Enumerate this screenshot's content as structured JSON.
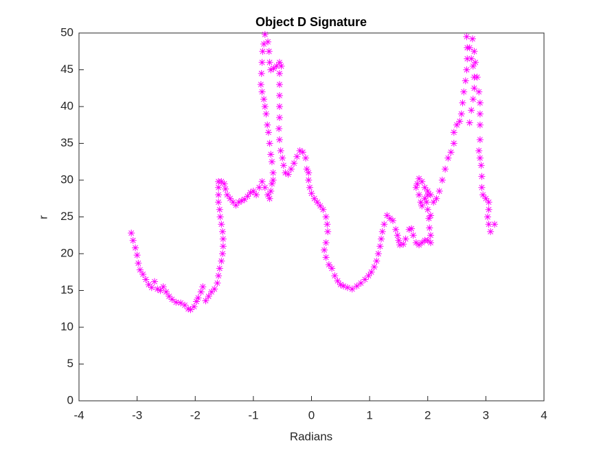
{
  "chart_data": {
    "type": "scatter",
    "title": "Object D Signature",
    "x_label": "Radians",
    "y_label": "r",
    "color": "#ff00ff",
    "marker": "asterisk",
    "xlim": [
      -4,
      4
    ],
    "xticks": [
      -4,
      -3,
      -2,
      -1,
      0,
      1,
      2,
      3,
      4
    ],
    "ylim": [
      0,
      50
    ],
    "yticks": [
      0,
      5,
      10,
      15,
      20,
      25,
      30,
      35,
      40,
      45,
      50
    ],
    "x": [
      -3.1,
      -3.07,
      -3.03,
      -3.0,
      -2.98,
      -2.95,
      -2.9,
      -2.85,
      -2.8,
      -2.75,
      -2.7,
      -2.65,
      -2.6,
      -2.55,
      -2.5,
      -2.45,
      -2.4,
      -2.33,
      -2.25,
      -2.18,
      -2.12,
      -2.08,
      -2.02,
      -1.98,
      -1.95,
      -1.9,
      -1.87,
      -1.82,
      -1.77,
      -1.72,
      -1.67,
      -1.62,
      -1.6,
      -1.58,
      -1.55,
      -1.53,
      -1.52,
      -1.52,
      -1.53,
      -1.55,
      -1.57,
      -1.58,
      -1.6,
      -1.6,
      -1.6,
      -1.6,
      -1.55,
      -1.5,
      -1.48,
      -1.45,
      -1.4,
      -1.35,
      -1.3,
      -1.25,
      -1.2,
      -1.15,
      -1.1,
      -1.05,
      -1.0,
      -0.95,
      -0.9,
      -0.85,
      -0.8,
      -0.75,
      -0.72,
      -0.7,
      -0.68,
      -0.87,
      -0.86,
      -0.85,
      -0.84,
      -0.82,
      -0.8,
      -0.85,
      -0.82,
      -0.8,
      -0.78,
      -0.76,
      -0.74,
      -0.72,
      -0.7,
      -0.68,
      -0.66,
      -0.66,
      -0.75,
      -0.73,
      -0.72,
      -0.7,
      -0.65,
      -0.6,
      -0.55,
      -0.52,
      -0.55,
      -0.55,
      -0.55,
      -0.55,
      -0.55,
      -0.56,
      -0.55,
      -0.53,
      -0.5,
      -0.48,
      -0.45,
      -0.4,
      -0.35,
      -0.3,
      -0.25,
      -0.2,
      -0.15,
      -0.1,
      -0.08,
      -0.05,
      -0.05,
      -0.03,
      0.0,
      0.05,
      0.1,
      0.15,
      0.2,
      0.25,
      0.27,
      0.28,
      0.25,
      0.22,
      0.25,
      0.3,
      0.35,
      0.4,
      0.45,
      0.5,
      0.55,
      0.62,
      0.7,
      0.78,
      0.85,
      0.92,
      0.98,
      1.03,
      1.08,
      1.12,
      1.15,
      1.18,
      1.2,
      1.22,
      1.25,
      1.3,
      1.35,
      1.4,
      1.45,
      1.48,
      1.5,
      1.52,
      1.58,
      1.62,
      1.68,
      1.72,
      1.75,
      1.8,
      1.85,
      1.9,
      1.95,
      2.0,
      2.05,
      2.05,
      2.03,
      2.02,
      2.05,
      2.0,
      1.98,
      2.0,
      1.95,
      1.9,
      1.85,
      1.82,
      1.8,
      1.85,
      1.88,
      1.9,
      1.95,
      2.0,
      2.05,
      2.1,
      2.15,
      2.2,
      2.25,
      2.3,
      2.35,
      2.4,
      2.45,
      2.45,
      2.5,
      2.55,
      2.58,
      2.6,
      2.62,
      2.65,
      2.67,
      2.68,
      2.68,
      2.67,
      2.72,
      2.75,
      2.78,
      2.8,
      2.8,
      2.78,
      2.75,
      2.72,
      2.77,
      2.8,
      2.82,
      2.85,
      2.88,
      2.9,
      2.9,
      2.9,
      2.9,
      2.88,
      2.9,
      2.92,
      2.93,
      2.93,
      2.95,
      3.0,
      3.05,
      3.05,
      3.03,
      3.05,
      3.08,
      3.15
    ],
    "values": [
      22.8,
      21.8,
      20.8,
      19.8,
      18.7,
      17.8,
      17.2,
      16.5,
      15.8,
      15.4,
      16.2,
      15.2,
      15.0,
      15.5,
      14.8,
      14.2,
      13.8,
      13.4,
      13.3,
      13.0,
      12.5,
      12.4,
      12.8,
      13.5,
      14.0,
      14.8,
      15.5,
      13.6,
      14.2,
      14.8,
      15.2,
      16.0,
      17.0,
      18.0,
      19.0,
      20.0,
      21.0,
      22.0,
      23.0,
      24.0,
      25.0,
      26.0,
      27.0,
      28.0,
      29.0,
      29.8,
      29.8,
      29.5,
      28.8,
      28.0,
      27.5,
      27.0,
      26.6,
      27.0,
      27.2,
      27.4,
      27.8,
      28.3,
      28.5,
      28.0,
      29.0,
      29.8,
      29.0,
      28.0,
      27.5,
      28.5,
      29.5,
      43,
      44.5,
      46,
      47.5,
      48.5,
      49.8,
      42,
      41,
      40,
      39,
      37.5,
      36.5,
      35,
      33.5,
      32.5,
      31,
      30,
      48.8,
      47.5,
      46,
      45,
      45.2,
      45.5,
      46,
      45.5,
      44.5,
      43,
      41.5,
      40,
      38.5,
      37,
      35.5,
      34,
      33,
      32,
      31,
      30.8,
      31.5,
      32.3,
      33.2,
      34,
      33.8,
      33,
      31.5,
      31,
      30,
      29,
      28.2,
      27.5,
      27,
      26.5,
      26,
      25,
      24,
      23,
      21.5,
      20.5,
      19.5,
      18.5,
      18,
      17,
      16.3,
      15.8,
      15.6,
      15.4,
      15.2,
      15.6,
      16,
      16.5,
      17,
      17.5,
      18.2,
      19,
      20,
      21,
      22,
      23,
      24,
      25.2,
      24.8,
      24.5,
      23.3,
      22.5,
      21.8,
      21.2,
      21.3,
      22,
      23.3,
      23.4,
      22.5,
      21.5,
      21.2,
      21.5,
      21.8,
      21.8,
      21.5,
      22.5,
      23.5,
      24.8,
      25.2,
      26,
      27,
      28,
      29,
      29.8,
      30.2,
      29.5,
      29,
      28,
      27,
      26.5,
      27.5,
      28.5,
      28,
      27,
      27.5,
      28.5,
      30,
      31.5,
      33,
      33.8,
      35,
      36.5,
      37.5,
      38,
      39,
      40.5,
      42,
      43.5,
      45,
      46.5,
      48,
      49.5,
      48,
      46.5,
      45.5,
      44,
      42.5,
      41,
      39.5,
      37.8,
      49.2,
      47.5,
      46,
      44,
      42,
      40.5,
      39,
      37.5,
      35.5,
      34,
      33,
      32,
      30.5,
      29,
      28,
      27.5,
      27,
      26,
      25,
      24,
      23,
      24
    ]
  }
}
